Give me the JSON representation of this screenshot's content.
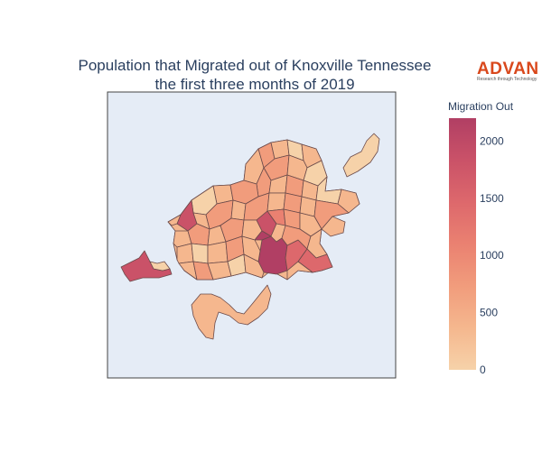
{
  "title": {
    "line1": "Population that Migrated out of Knoxville Tennessee",
    "line2": "the first three months of 2019"
  },
  "logo": {
    "main": "ADVAN",
    "sub": "Research through Technology"
  },
  "colorbar": {
    "title": "Migration Out",
    "min": 0,
    "max": 2200,
    "ticks": [
      0,
      500,
      1000,
      1500,
      2000
    ],
    "colorscale": [
      "#f6d2a9",
      "#f5b78e",
      "#f19c7c",
      "#ea8171",
      "#dd686c",
      "#ca5268",
      "#b13f64"
    ]
  },
  "map": {
    "background": "#e5ecf6",
    "border": "#444444"
  },
  "chart_data": {
    "type": "choropleth",
    "title": "Population that Migrated out of Knoxville Tennessee the first three months of 2019",
    "legend": "Migration Out",
    "range": [
      0,
      2200
    ],
    "regions": [
      {
        "value": 2200
      },
      {
        "value": 1900
      },
      {
        "value": 1750
      },
      {
        "value": 1650
      },
      {
        "value": 1400
      },
      {
        "value": 1300
      },
      {
        "value": 1200
      },
      {
        "value": 1100
      },
      {
        "value": 900
      },
      {
        "value": 700
      },
      {
        "value": 600
      },
      {
        "value": 500
      },
      {
        "value": 400
      },
      {
        "value": 300
      }
    ]
  }
}
